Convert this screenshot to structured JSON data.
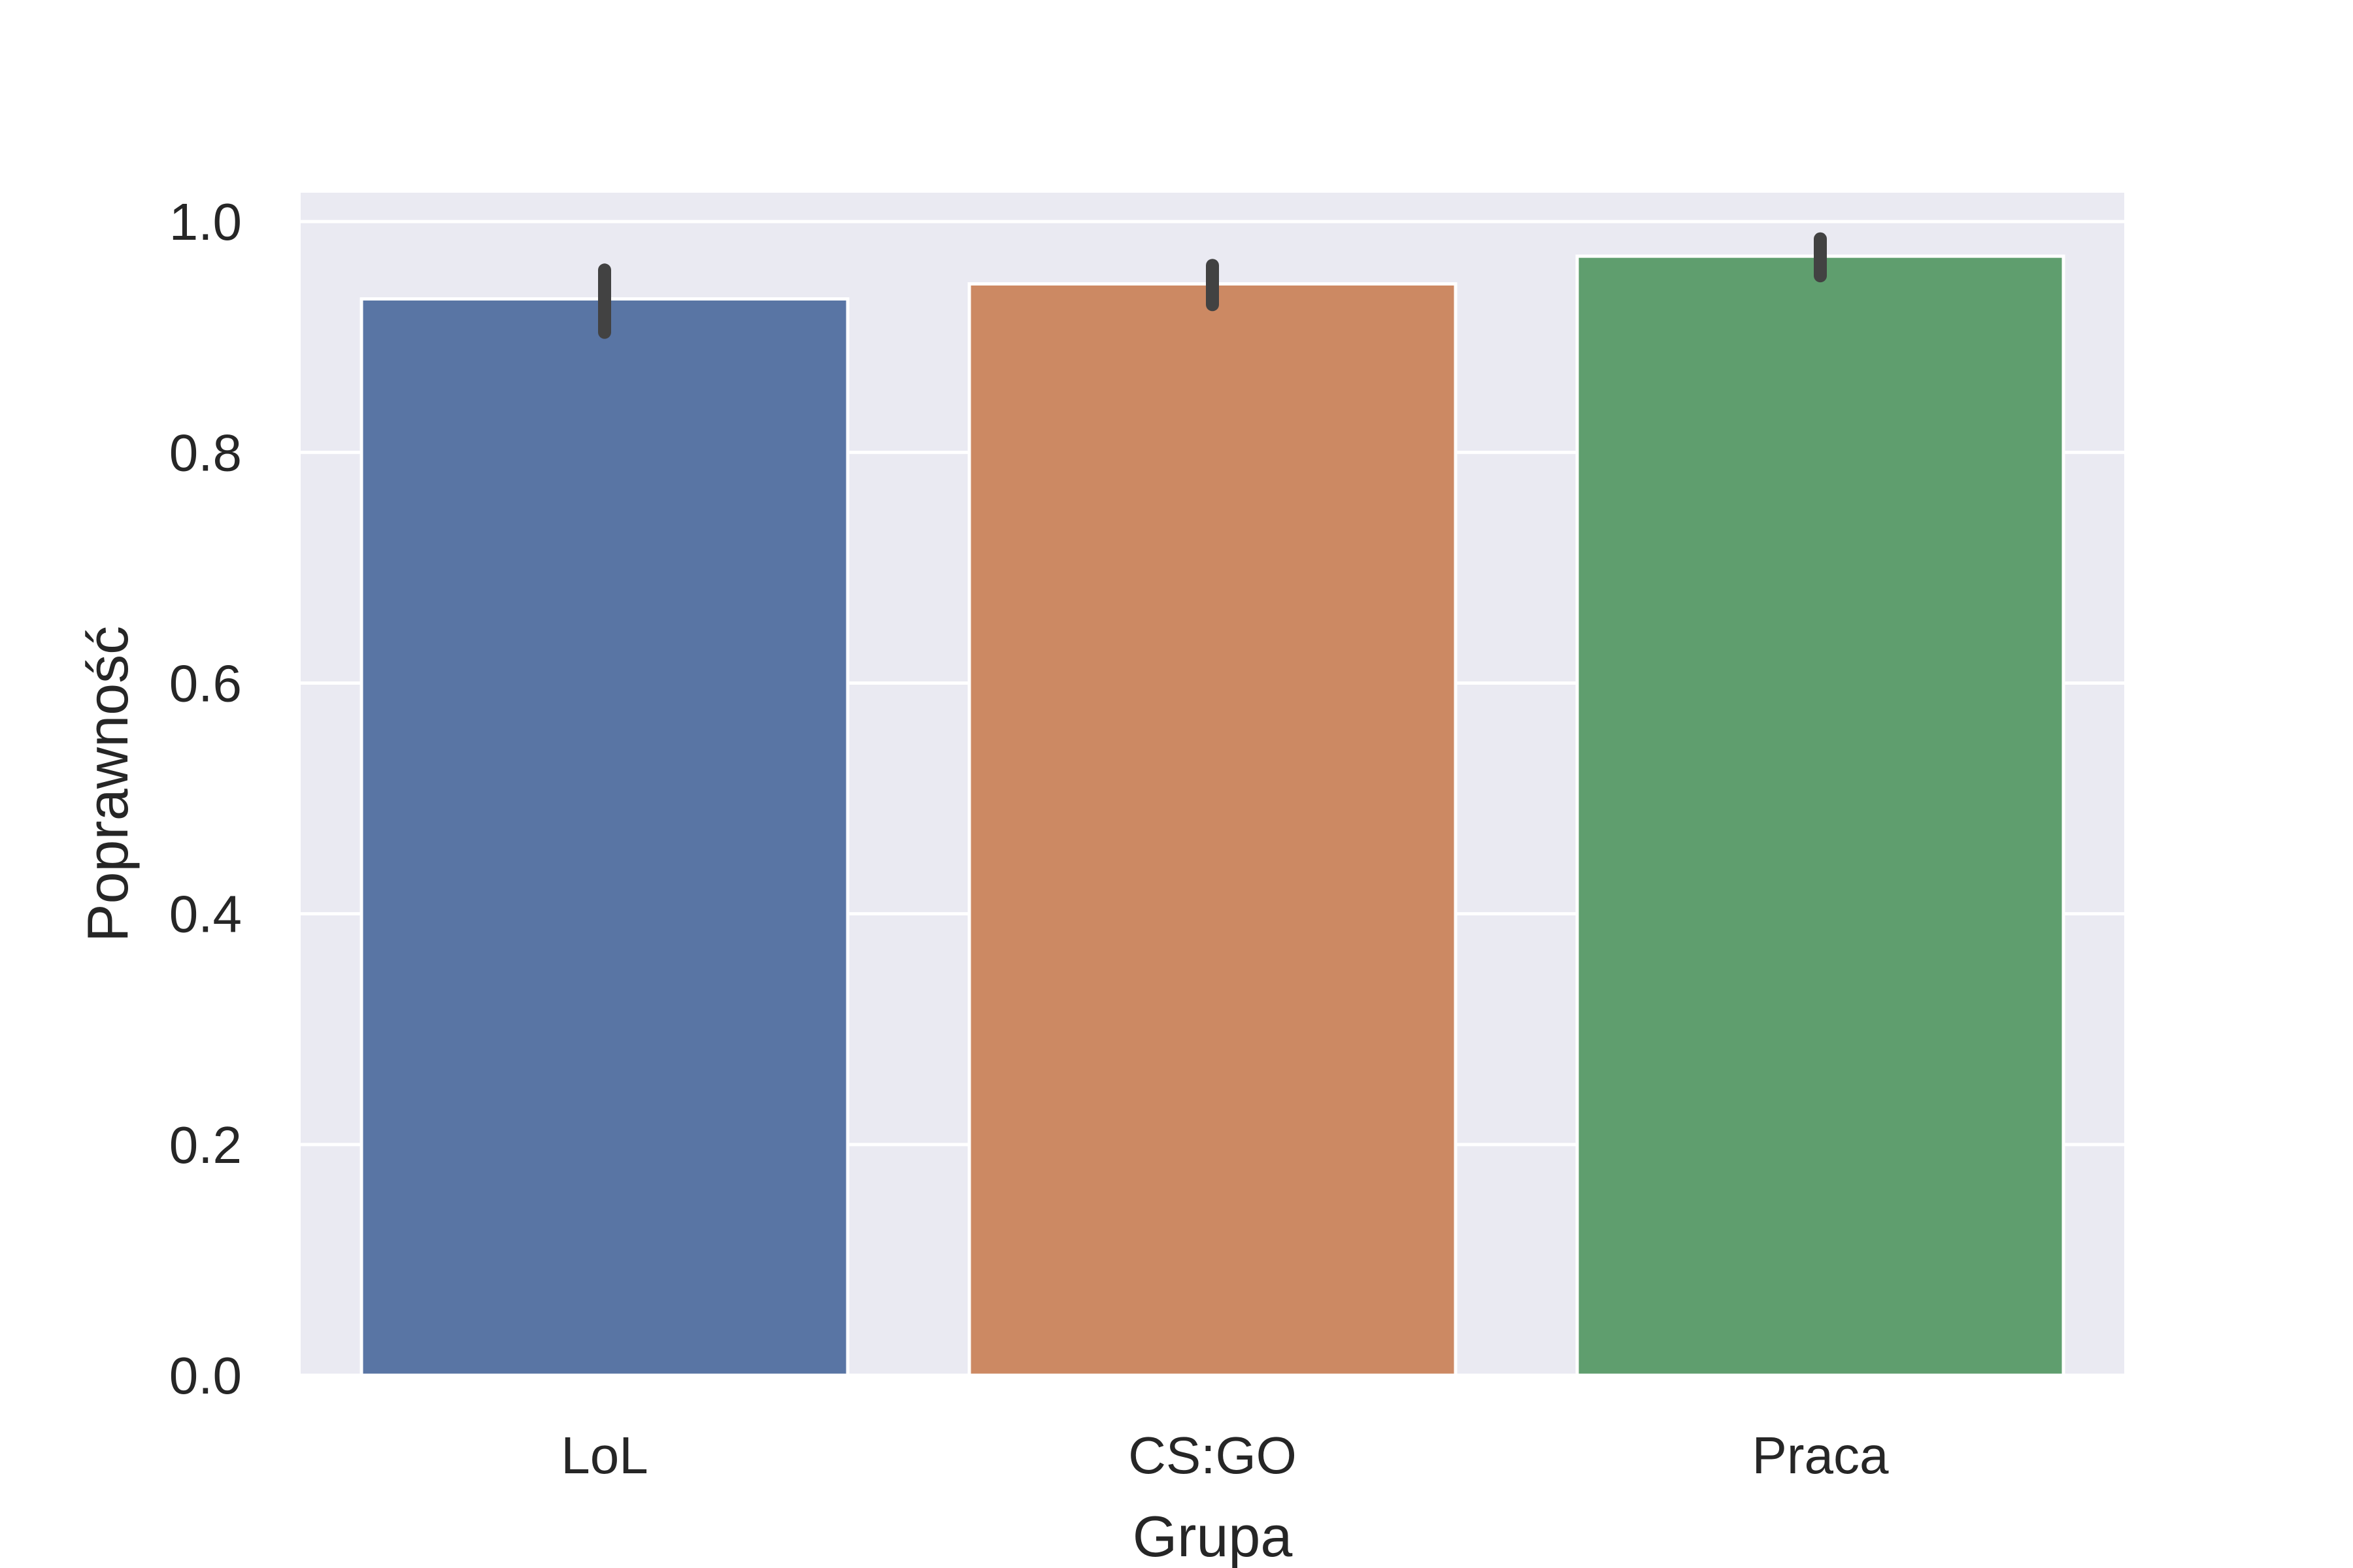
{
  "chart_data": {
    "type": "bar",
    "title": "",
    "xlabel": "Grupa",
    "ylabel": "Poprawność",
    "categories": [
      "LoL",
      "CS:GO",
      "Praca"
    ],
    "values": [
      0.933,
      0.946,
      0.97
    ],
    "error_bars": [
      [
        0.904,
        0.958
      ],
      [
        0.928,
        0.962
      ],
      [
        0.953,
        0.985
      ]
    ],
    "colors": [
      "#5975a4",
      "#cc8963",
      "#5f9e6e"
    ],
    "error_bar_color": "#424242",
    "ylim": [
      0.0,
      1.0
    ],
    "yticks": [
      "0.0",
      "0.2",
      "0.4",
      "0.6",
      "0.8",
      "1.0"
    ],
    "grid": true,
    "background": "#eaeaf2"
  }
}
